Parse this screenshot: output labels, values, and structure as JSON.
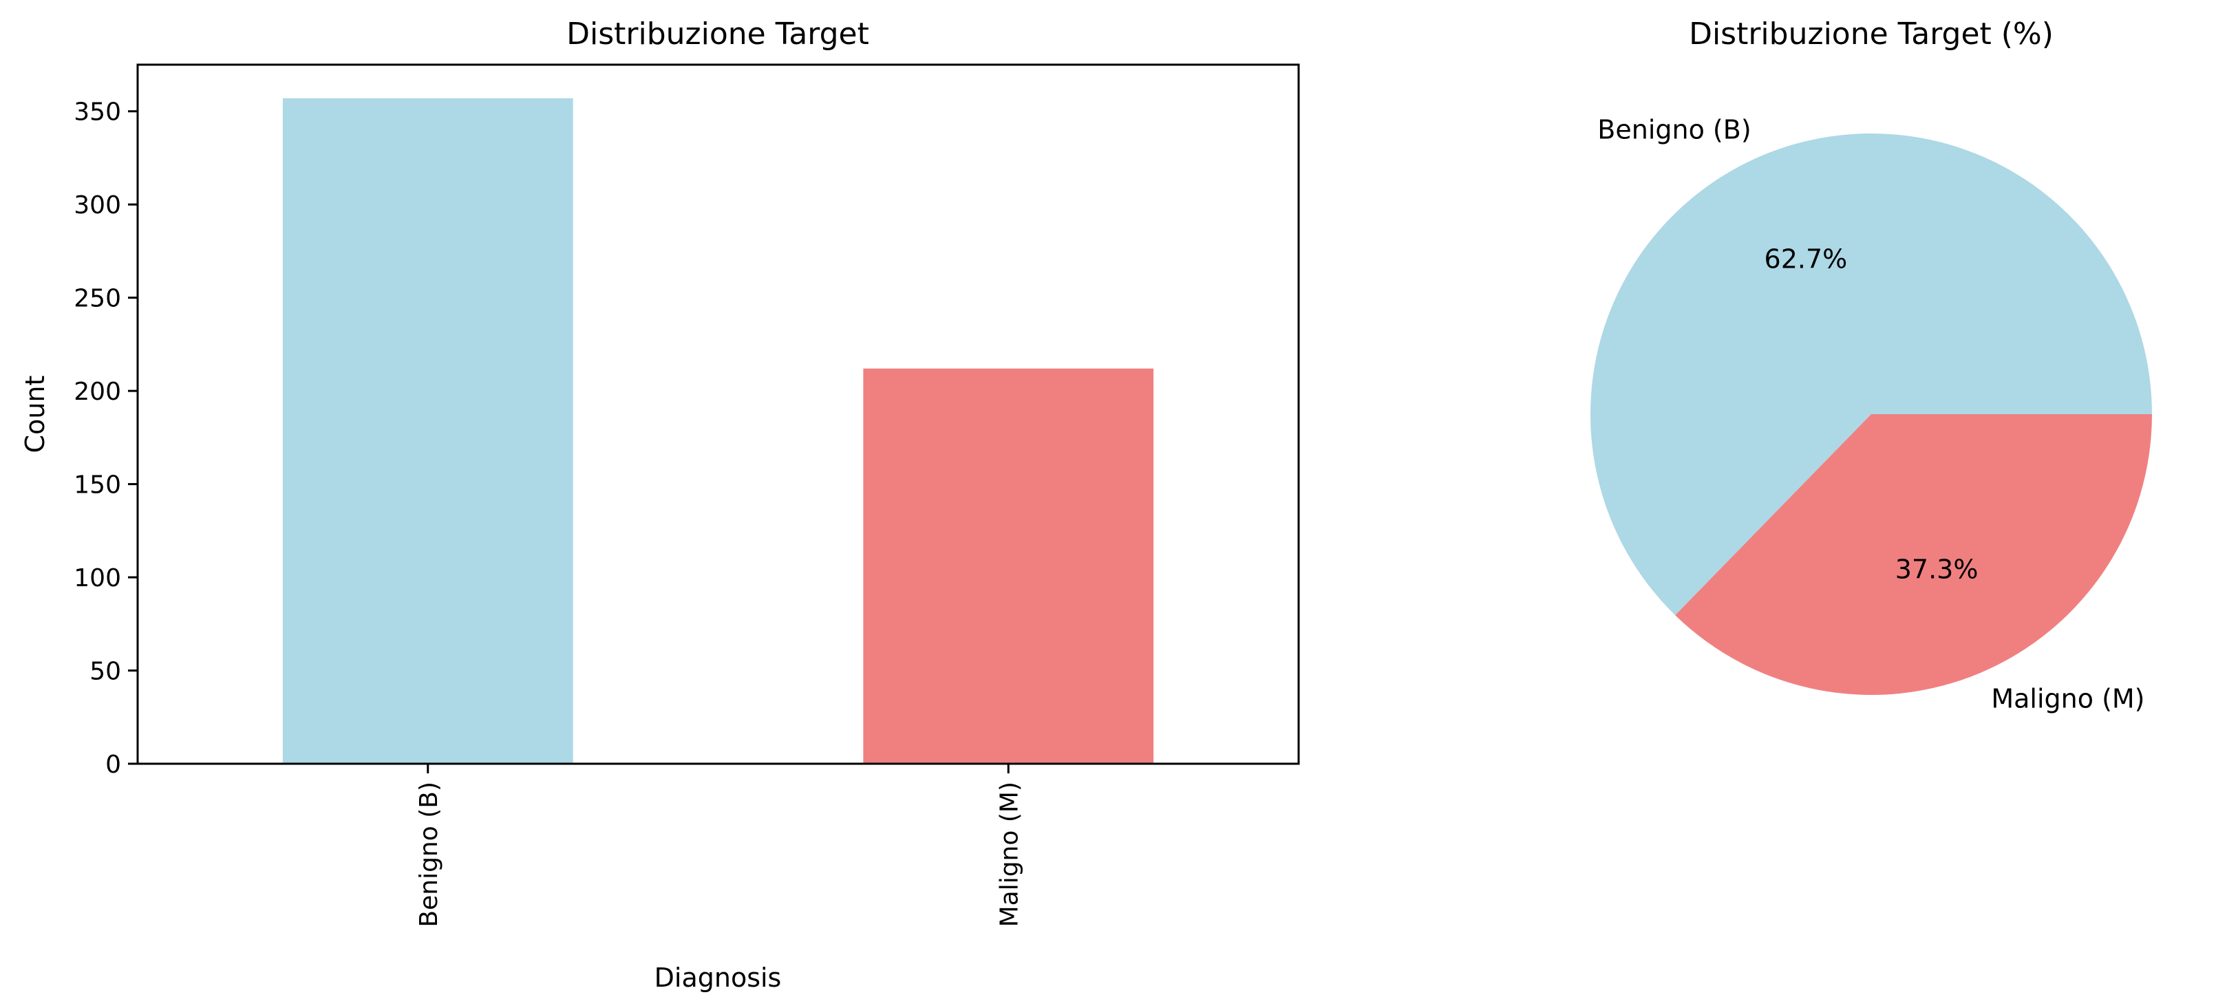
{
  "chart_data": [
    {
      "type": "bar",
      "title": "Distribuzione Target",
      "xlabel": "Diagnosis",
      "ylabel": "Count",
      "categories": [
        "Benigno (B)",
        "Maligno (M)"
      ],
      "values": [
        357,
        212
      ],
      "colors": [
        "#add8e6",
        "#f08080"
      ],
      "yticks": [
        0,
        50,
        100,
        150,
        200,
        250,
        300,
        350
      ],
      "ylim": [
        0,
        375
      ],
      "grid": false,
      "legend": "none"
    },
    {
      "type": "pie",
      "title": "Distribuzione Target (%)",
      "labels": [
        "Benigno (B)",
        "Maligno (M)"
      ],
      "values": [
        62.7,
        37.3
      ],
      "pct_labels": [
        "62.7%",
        "37.3%"
      ],
      "colors": [
        "#add8e6",
        "#f08080"
      ],
      "legend": "none"
    }
  ]
}
